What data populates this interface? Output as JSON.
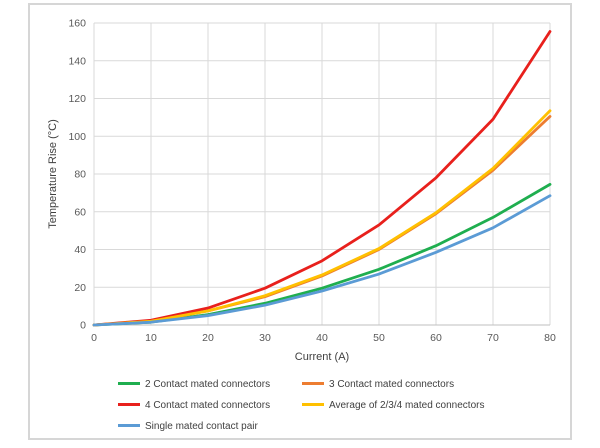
{
  "chart_data": {
    "type": "line",
    "xlabel": "Current (A)",
    "ylabel": "Temperature Rise (°C)",
    "x": [
      0,
      10,
      20,
      30,
      40,
      50,
      60,
      70,
      80
    ],
    "xlim": [
      0,
      80
    ],
    "ylim": [
      0,
      160
    ],
    "xticks": [
      "0",
      "10",
      "20",
      "30",
      "40",
      "50",
      "60",
      "70",
      "80"
    ],
    "yticks": [
      "0",
      "20",
      "40",
      "60",
      "80",
      "100",
      "120",
      "140",
      "160"
    ],
    "grid": true,
    "legend_position": "bottom",
    "series": [
      {
        "name": "2 Contact mated connectors",
        "color": "#1fae4f",
        "values": [
          0,
          1.5,
          5.5,
          11.5,
          19.5,
          29.5,
          42,
          57,
          74.5
        ]
      },
      {
        "name": "3 Contact mated connectors",
        "color": "#ed7d31",
        "values": [
          0,
          2,
          7.5,
          15,
          26,
          40,
          59,
          82,
          110.5
        ]
      },
      {
        "name": "4 Contact mated connectors",
        "color": "#e8201c",
        "values": [
          0,
          2.5,
          9,
          19.5,
          34,
          53,
          78,
          109,
          155.5
        ]
      },
      {
        "name": "Average of 2/3/4 mated connectors",
        "color": "#ffc000",
        "values": [
          0,
          2,
          7.5,
          15.5,
          26.5,
          40.5,
          59.5,
          83,
          113.5
        ]
      },
      {
        "name": "Single mated contact pair",
        "color": "#5b9bd5",
        "values": [
          0,
          1.5,
          5,
          10.5,
          18,
          27,
          38.5,
          51.5,
          68.5
        ]
      }
    ]
  }
}
